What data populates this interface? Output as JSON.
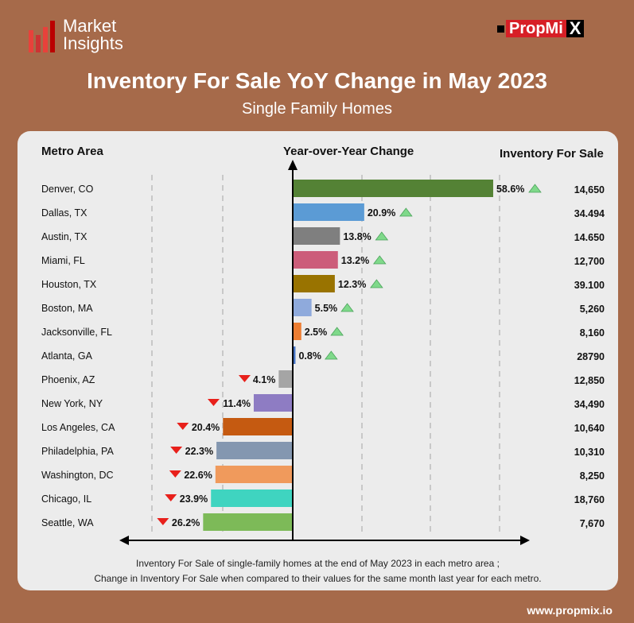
{
  "header": {
    "logo_line1": "Market",
    "logo_line2": "Insights",
    "brand_prefix": "PropMi",
    "brand_suffix": "X",
    "title": "Inventory For Sale YoY Change in May 2023",
    "subtitle": "Single Family Homes"
  },
  "columns": {
    "metro": "Metro Area",
    "change": "Year-over-Year Change",
    "inventory": "Inventory For Sale"
  },
  "footnote": {
    "line1": "Inventory For Sale of single-family homes at the end of May 2023 in each metro area ;",
    "line2": "Change in Inventory For Sale when compared to their values for the same month last year for each metro."
  },
  "footer": {
    "url": "www.propmix.io"
  },
  "chart_data": {
    "type": "bar",
    "orientation": "horizontal",
    "title": "Inventory For Sale YoY Change in May 2023",
    "xlabel": "Year-over-Year Change",
    "unit": "%",
    "categories": [
      "Denver, CO",
      "Dallas, TX",
      "Austin, TX",
      "Miami, FL",
      "Houston, TX",
      "Boston, MA",
      "Jacksonville, FL",
      "Atlanta, GA",
      "Phoenix, AZ",
      "New York, NY",
      "Los Angeles, CA",
      "Philadelphia, PA",
      "Washington, DC",
      "Chicago, IL",
      "Seattle, WA"
    ],
    "values": [
      58.6,
      20.9,
      13.8,
      13.2,
      12.3,
      5.5,
      2.5,
      0.8,
      -4.1,
      -11.4,
      -20.4,
      -22.3,
      -22.6,
      -23.9,
      -26.2
    ],
    "labels": [
      "58.6%",
      "20.9%",
      "13.8%",
      "13.2%",
      "12.3%",
      "5.5%",
      "2.5%",
      "0.8%",
      "4.1%",
      "11.4%",
      "20.4%",
      "22.3%",
      "22.6%",
      "23.9%",
      "26.2%"
    ],
    "inventory": [
      "14,650",
      "34.494",
      "14.650",
      "12,700",
      "39.100",
      "5,260",
      "8,160",
      "28790",
      "12,850",
      "34,490",
      "10,640",
      "10,310",
      "8,250",
      "18,760",
      "7,670"
    ],
    "colors": [
      "#548235",
      "#5b9bd5",
      "#7f7f7f",
      "#cc5d7a",
      "#997300",
      "#8faadc",
      "#ed7d31",
      "#4472c4",
      "#a5a5a5",
      "#8e7cc3",
      "#c55a11",
      "#8497b0",
      "#f09a5c",
      "#3fd4c0",
      "#7dba58"
    ],
    "up_color": "#7fd98a",
    "down_color": "#e8201b"
  }
}
